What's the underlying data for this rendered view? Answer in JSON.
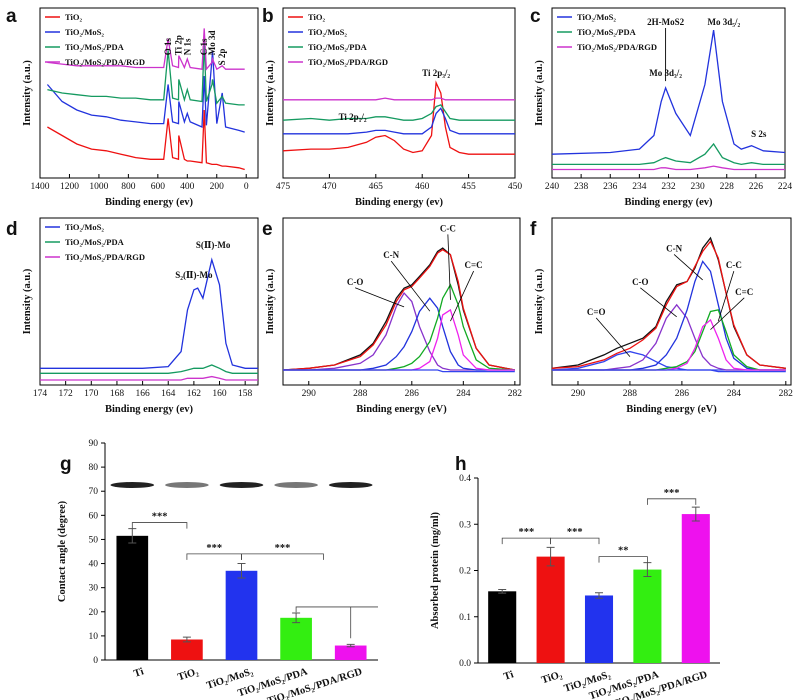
{
  "chart_data": [
    {
      "type": "line",
      "panel": "a",
      "xlabel": "Binding energy (ev)",
      "ylabel": "Intensity (a.u.)",
      "xlim": [
        1400,
        -80
      ],
      "xticks": [
        1400,
        1200,
        1000,
        800,
        600,
        400,
        200,
        0
      ],
      "ylim": [
        0,
        100
      ],
      "legend": true,
      "x": [
        1350,
        1250,
        1150,
        1050,
        950,
        850,
        750,
        650,
        560,
        530,
        500,
        460,
        458,
        420,
        400,
        380,
        300,
        285,
        270,
        232,
        229,
        200,
        163,
        140,
        50,
        10
      ],
      "series": [
        {
          "name": "TiO₂",
          "color": "#ee1111",
          "values": [
            30,
            25,
            20,
            17,
            16,
            14,
            12,
            11,
            11,
            35,
            12,
            11,
            25,
            11,
            10,
            10,
            9,
            40,
            9,
            8,
            8,
            8,
            7,
            7,
            6,
            5
          ]
        },
        {
          "name": "TiO₂/MoS₂",
          "color": "#2233dd",
          "values": [
            55,
            45,
            40,
            37,
            36,
            34,
            33,
            32,
            32,
            55,
            33,
            32,
            45,
            33,
            38,
            33,
            30,
            60,
            31,
            70,
            75,
            32,
            50,
            30,
            28,
            27
          ]
        },
        {
          "name": "TiO₂/MoS₂/PDA",
          "color": "#159a60",
          "values": [
            52,
            50,
            49,
            48,
            48,
            47,
            47,
            46,
            46,
            75,
            47,
            46,
            58,
            46,
            52,
            46,
            45,
            80,
            45,
            55,
            58,
            44,
            48,
            44,
            43,
            43
          ]
        },
        {
          "name": "TiO₂/MoS₂/PDA/RGD",
          "color": "#cc33cc",
          "values": [
            68,
            67,
            66,
            66,
            66,
            66,
            65,
            65,
            65,
            82,
            66,
            65,
            72,
            65,
            70,
            65,
            64,
            88,
            64,
            68,
            70,
            64,
            66,
            64,
            64,
            64
          ]
        }
      ],
      "annotations": [
        "O 1s",
        "Ti 2p",
        "N 1s",
        "C 1s",
        "Mo 3d",
        "S 2p"
      ]
    },
    {
      "type": "line",
      "panel": "b",
      "xlabel": "Binding energy (ev)",
      "ylabel": "Intensity (a.u.)",
      "xlim": [
        475,
        450
      ],
      "xticks": [
        475,
        470,
        465,
        460,
        455,
        450
      ],
      "ylim": [
        0,
        100
      ],
      "legend": true,
      "x": [
        475,
        472,
        470,
        468,
        466,
        465,
        464,
        463,
        462,
        461,
        460,
        459,
        458.5,
        458,
        457.5,
        457,
        456,
        455,
        453,
        450
      ],
      "series": [
        {
          "name": "TiO₂",
          "color": "#ee1111",
          "values": [
            16,
            17,
            17,
            18,
            21,
            24,
            25,
            22,
            17,
            15,
            16,
            25,
            56,
            50,
            30,
            18,
            15,
            14,
            14,
            14
          ]
        },
        {
          "name": "TiO₂/MoS₂",
          "color": "#2233dd",
          "values": [
            26,
            26,
            26,
            26,
            27,
            28,
            28,
            27,
            26,
            26,
            26,
            30,
            38,
            41,
            35,
            28,
            26,
            26,
            26,
            26
          ]
        },
        {
          "name": "TiO₂/MoS₂/PDA",
          "color": "#159a60",
          "values": [
            34,
            35,
            34,
            35,
            35,
            36,
            36,
            35,
            34,
            34,
            35,
            38,
            42,
            43,
            39,
            35,
            34,
            34,
            34,
            34
          ]
        },
        {
          "name": "TiO₂/MoS₂/PDA/RGD",
          "color": "#cc33cc",
          "values": [
            46,
            46,
            46,
            46,
            46,
            46,
            47,
            46,
            46,
            46,
            46,
            46,
            47,
            47,
            46,
            46,
            46,
            46,
            46,
            46
          ]
        }
      ],
      "annotations": [
        "Ti 2p₁/₂",
        "Ti 2p₃/₂"
      ]
    },
    {
      "type": "line",
      "panel": "c",
      "xlabel": "Binding energy (ev)",
      "ylabel": "Intensity (a.u.)",
      "xlim": [
        240,
        224
      ],
      "xticks": [
        240,
        238,
        236,
        234,
        232,
        230,
        228,
        226,
        224
      ],
      "ylim": [
        0,
        100
      ],
      "legend": true,
      "x": [
        240,
        236,
        234,
        233,
        232.5,
        232.2,
        231.5,
        230.5,
        229.5,
        228.9,
        228.3,
        227.5,
        227,
        226.3,
        225.5,
        224
      ],
      "series": [
        {
          "name": "TiO₂/MoS₂",
          "color": "#2233dd",
          "values": [
            14,
            15,
            17,
            25,
            45,
            53,
            38,
            25,
            55,
            87,
            45,
            20,
            17,
            19,
            16,
            15
          ]
        },
        {
          "name": "TiO₂/MoS₂/PDA",
          "color": "#159a60",
          "values": [
            8,
            8,
            8,
            9,
            11,
            12,
            10,
            9,
            14,
            20,
            12,
            9,
            8,
            9,
            8,
            8
          ]
        },
        {
          "name": "TiO₂/MoS₂/PDA/RGD",
          "color": "#cc33cc",
          "values": [
            5,
            5,
            5,
            5,
            6,
            6,
            5,
            5,
            6,
            7,
            6,
            5,
            5,
            5,
            5,
            5
          ]
        }
      ],
      "annotations": [
        "2H-MoS2",
        "Mo 3d₅/₂",
        "Mo 3d₃/₂",
        "S 2s"
      ]
    },
    {
      "type": "line",
      "panel": "d",
      "xlabel": "Binding energy (ev)",
      "ylabel": "Intensity (a.u.)",
      "xlim": [
        174,
        157
      ],
      "xticks": [
        174,
        172,
        170,
        168,
        166,
        164,
        162,
        160,
        158
      ],
      "ylim": [
        0,
        100
      ],
      "legend": true,
      "x": [
        174,
        170,
        166,
        164,
        163,
        162.5,
        162,
        161.7,
        161.3,
        160.6,
        160,
        159.5,
        159,
        158,
        157
      ],
      "series": [
        {
          "name": "TiO₂/MoS₂",
          "color": "#2233dd",
          "values": [
            10,
            10,
            10,
            11,
            20,
            45,
            57,
            58,
            52,
            75,
            60,
            25,
            12,
            10,
            10
          ]
        },
        {
          "name": "TiO₂/MoS₂/PDA",
          "color": "#159a60",
          "values": [
            7,
            7,
            7,
            7,
            8,
            9,
            10,
            10,
            10,
            12,
            10,
            8,
            7,
            7,
            7
          ]
        },
        {
          "name": "TiO₂/MoS₂/PDA/RGD",
          "color": "#cc33cc",
          "values": [
            3,
            3,
            3,
            3,
            3,
            4,
            4,
            4,
            4,
            5,
            4,
            3,
            3,
            3,
            3
          ]
        }
      ],
      "annotations": [
        "S(Ⅱ)-Mo",
        "S₂(Ⅱ)-Mo"
      ]
    },
    {
      "type": "line",
      "panel": "e",
      "xlabel": "Binding energy (eV)",
      "ylabel": "Intensity (a.u.)",
      "xlim": [
        291,
        281.8
      ],
      "xticks": [
        290,
        288,
        286,
        284,
        282
      ],
      "ylim": [
        0,
        100
      ],
      "legend": false,
      "x": [
        291,
        290,
        289,
        288,
        287.5,
        287,
        286.6,
        286.3,
        286,
        285.7,
        285.3,
        285,
        284.8,
        284.5,
        284.2,
        284,
        283.5,
        283,
        282
      ],
      "series": [
        {
          "color": "#111111",
          "values": [
            9,
            10,
            12,
            18,
            25,
            38,
            52,
            58,
            60,
            65,
            72,
            80,
            82,
            78,
            60,
            45,
            22,
            12,
            9
          ]
        },
        {
          "color": "#ee1111",
          "values": [
            9,
            10,
            12,
            17,
            24,
            36,
            50,
            57,
            59,
            64,
            71,
            79,
            81,
            78,
            62,
            46,
            22,
            12,
            9
          ]
        },
        {
          "name": "C-O",
          "color": "#8833cc",
          "values": [
            9,
            9,
            10,
            13,
            18,
            30,
            47,
            55,
            50,
            35,
            20,
            12,
            10,
            9,
            9,
            9,
            9,
            9,
            9
          ]
        },
        {
          "name": "C-N",
          "color": "#2233dd",
          "values": [
            9,
            9,
            9,
            9,
            10,
            12,
            17,
            23,
            32,
            44,
            52,
            46,
            35,
            20,
            12,
            10,
            9,
            9,
            9
          ]
        },
        {
          "name": "C-C",
          "color": "#11aa22",
          "values": [
            9,
            9,
            9,
            9,
            9,
            9,
            10,
            11,
            13,
            17,
            26,
            40,
            52,
            60,
            48,
            35,
            15,
            10,
            9
          ]
        },
        {
          "name": "C=C",
          "color": "#ee22ee",
          "values": [
            9,
            9,
            9,
            9,
            9,
            9,
            9,
            9,
            9,
            10,
            14,
            28,
            42,
            45,
            30,
            18,
            10,
            9,
            9
          ]
        },
        {
          "color": "#3344ee",
          "values": [
            9,
            9,
            9,
            9,
            9,
            9,
            9,
            9,
            9,
            9,
            9,
            9,
            8,
            8,
            8,
            8,
            8,
            8,
            8
          ]
        }
      ]
    },
    {
      "type": "line",
      "panel": "f",
      "xlabel": "Binding energy (eV)",
      "ylabel": "Intensity (a.u.)",
      "xlim": [
        291,
        281.8
      ],
      "xticks": [
        290,
        288,
        286,
        284,
        282
      ],
      "ylim": [
        0,
        100
      ],
      "legend": false,
      "x": [
        291,
        290,
        289,
        288.5,
        288,
        287.5,
        287,
        286.6,
        286.2,
        285.8,
        285.5,
        285.2,
        284.9,
        284.6,
        284.3,
        284,
        283.5,
        283,
        282
      ],
      "series": [
        {
          "color": "#111111",
          "values": [
            10,
            12,
            18,
            22,
            25,
            28,
            35,
            50,
            60,
            62,
            70,
            82,
            88,
            75,
            55,
            35,
            18,
            12,
            10
          ]
        },
        {
          "color": "#ee1111",
          "values": [
            10,
            11,
            15,
            19,
            22,
            27,
            34,
            48,
            59,
            62,
            71,
            80,
            86,
            76,
            55,
            36,
            18,
            12,
            10
          ]
        },
        {
          "name": "C=O",
          "color": "#3344ee",
          "values": [
            9,
            10,
            14,
            18,
            20,
            18,
            14,
            11,
            10,
            9,
            9,
            9,
            9,
            9,
            9,
            9,
            9,
            9,
            9
          ]
        },
        {
          "name": "C-O",
          "color": "#8833cc",
          "values": [
            9,
            9,
            9,
            10,
            11,
            15,
            25,
            40,
            48,
            40,
            28,
            17,
            12,
            10,
            9,
            9,
            9,
            9,
            9
          ]
        },
        {
          "name": "C-N",
          "color": "#2233dd",
          "values": [
            9,
            9,
            9,
            9,
            9,
            10,
            12,
            18,
            28,
            45,
            62,
            74,
            68,
            48,
            28,
            16,
            10,
            9,
            9
          ]
        },
        {
          "name": "C-C",
          "color": "#11aa22",
          "values": [
            9,
            9,
            9,
            9,
            9,
            9,
            9,
            10,
            11,
            14,
            20,
            32,
            44,
            45,
            32,
            18,
            11,
            9,
            9
          ]
        },
        {
          "name": "C=C",
          "color": "#ee22ee",
          "values": [
            9,
            9,
            9,
            9,
            9,
            9,
            9,
            9,
            10,
            13,
            22,
            35,
            39,
            28,
            15,
            10,
            9,
            9,
            9
          ]
        },
        {
          "color": "#3344ee",
          "values": [
            9,
            9,
            9,
            9,
            9,
            9,
            9,
            9,
            9,
            9,
            9,
            9,
            9,
            8,
            8,
            8,
            8,
            8,
            8
          ]
        }
      ]
    },
    {
      "type": "bar",
      "panel": "g",
      "ylabel": "Contact angle (degree)",
      "categories": [
        "Ti",
        "TiO₂",
        "TiO₂/MoS₂",
        "TiO₂/MoS₂/PDA",
        "TiO₂/MoS₂/PDA/RGD"
      ],
      "values": [
        51.5,
        8.5,
        37,
        17.5,
        6
      ],
      "errors": [
        3,
        1,
        3,
        2,
        0.5
      ],
      "colors": [
        "#000000",
        "#ee1111",
        "#2233ee",
        "#33ee11",
        "#ee11ee"
      ],
      "ylim": [
        0,
        90
      ],
      "yticks": [
        0,
        10,
        20,
        30,
        40,
        50,
        60,
        70,
        80,
        90
      ],
      "significance": [
        "***",
        "***",
        "***"
      ]
    },
    {
      "type": "bar",
      "panel": "h",
      "ylabel": "Absorbed protein (mg/ml)",
      "categories": [
        "Ti",
        "TiO₂",
        "TiO₂/MoS₂",
        "TiO₂/MoS₂/PDA",
        "TiO₂/MoS₂/PDA/RGD"
      ],
      "values": [
        0.155,
        0.23,
        0.146,
        0.202,
        0.322
      ],
      "errors": [
        0.004,
        0.02,
        0.006,
        0.015,
        0.015
      ],
      "colors": [
        "#000000",
        "#ee1111",
        "#2233ee",
        "#33ee11",
        "#ee11ee"
      ],
      "ylim": [
        0,
        0.4
      ],
      "yticks": [
        {
          "value": 0,
          "label": "0.0"
        },
        0.1,
        0.2,
        0.3,
        0.4
      ],
      "significance": [
        "***",
        "***",
        "**",
        "***"
      ]
    }
  ]
}
